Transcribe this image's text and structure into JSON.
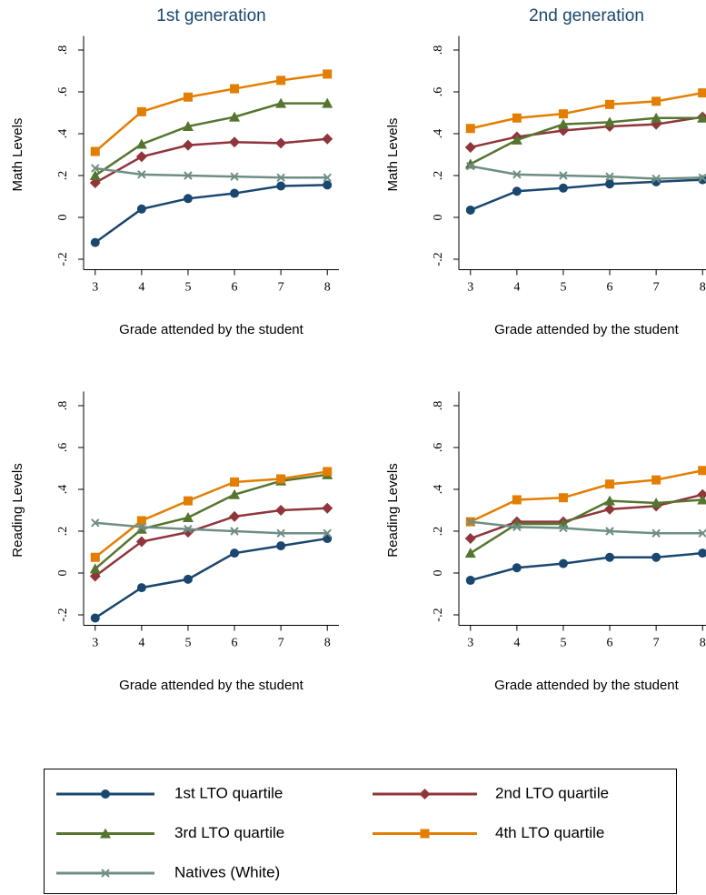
{
  "chart_data": [
    {
      "type": "line",
      "title": "1st generation",
      "ylabel": "Math Levels",
      "xlabel": "Grade attended by the student",
      "x": [
        3,
        4,
        5,
        6,
        7,
        8
      ],
      "xlim": [
        2.75,
        8.25
      ],
      "xticks": [
        3,
        4,
        5,
        6,
        7,
        8
      ],
      "ylim": [
        -0.25,
        0.85
      ],
      "yticks": [
        {
          "value": -0.2,
          "label": "-.2"
        },
        0,
        {
          "value": 0.2,
          "label": ".2"
        },
        {
          "value": 0.4,
          "label": ".4"
        },
        {
          "value": 0.6,
          "label": ".6"
        },
        {
          "value": 0.8,
          "label": ".8"
        }
      ],
      "series": [
        {
          "values": [
            -0.12,
            0.04,
            0.09,
            0.115,
            0.15,
            0.155
          ]
        },
        {
          "values": [
            0.165,
            0.29,
            0.345,
            0.36,
            0.355,
            0.375
          ]
        },
        {
          "values": [
            0.2,
            0.35,
            0.435,
            0.48,
            0.545,
            0.545
          ]
        },
        {
          "values": [
            0.315,
            0.505,
            0.575,
            0.615,
            0.655,
            0.685
          ]
        },
        {
          "values": [
            0.235,
            0.205,
            0.2,
            0.195,
            0.19,
            0.19
          ]
        }
      ]
    },
    {
      "type": "line",
      "title": "2nd generation",
      "ylabel": "Math Levels",
      "xlabel": "Grade attended by the student",
      "x": [
        3,
        4,
        5,
        6,
        7,
        8
      ],
      "xlim": [
        2.75,
        8.25
      ],
      "xticks": [
        3,
        4,
        5,
        6,
        7,
        8
      ],
      "ylim": [
        -0.25,
        0.85
      ],
      "yticks": [
        {
          "value": -0.2,
          "label": "-.2"
        },
        0,
        {
          "value": 0.2,
          "label": ".2"
        },
        {
          "value": 0.4,
          "label": ".4"
        },
        {
          "value": 0.6,
          "label": ".6"
        },
        {
          "value": 0.8,
          "label": ".8"
        }
      ],
      "series": [
        {
          "values": [
            0.035,
            0.125,
            0.14,
            0.16,
            0.17,
            0.18
          ]
        },
        {
          "values": [
            0.335,
            0.385,
            0.415,
            0.435,
            0.445,
            0.48
          ]
        },
        {
          "values": [
            0.255,
            0.37,
            0.445,
            0.455,
            0.475,
            0.475
          ]
        },
        {
          "values": [
            0.425,
            0.475,
            0.495,
            0.54,
            0.555,
            0.595
          ]
        },
        {
          "values": [
            0.245,
            0.205,
            0.2,
            0.195,
            0.185,
            0.19
          ]
        }
      ]
    },
    {
      "type": "line",
      "ylabel": "Reading Levels",
      "xlabel": "Grade attended by the student",
      "x": [
        3,
        4,
        5,
        6,
        7,
        8
      ],
      "xlim": [
        2.75,
        8.25
      ],
      "xticks": [
        3,
        4,
        5,
        6,
        7,
        8
      ],
      "ylim": [
        -0.25,
        0.85
      ],
      "yticks": [
        {
          "value": -0.2,
          "label": "-.2"
        },
        0,
        {
          "value": 0.2,
          "label": ".2"
        },
        {
          "value": 0.4,
          "label": ".4"
        },
        {
          "value": 0.6,
          "label": ".6"
        },
        {
          "value": 0.8,
          "label": ".8"
        }
      ],
      "series": [
        {
          "values": [
            -0.215,
            -0.07,
            -0.03,
            0.095,
            0.13,
            0.165
          ]
        },
        {
          "values": [
            -0.015,
            0.15,
            0.195,
            0.27,
            0.3,
            0.31
          ]
        },
        {
          "values": [
            0.02,
            0.21,
            0.265,
            0.375,
            0.44,
            0.47
          ]
        },
        {
          "values": [
            0.075,
            0.25,
            0.345,
            0.435,
            0.45,
            0.485
          ]
        },
        {
          "values": [
            0.24,
            0.22,
            0.21,
            0.2,
            0.19,
            0.19
          ]
        }
      ]
    },
    {
      "type": "line",
      "ylabel": "Reading Levels",
      "xlabel": "Grade attended by the student",
      "x": [
        3,
        4,
        5,
        6,
        7,
        8
      ],
      "xlim": [
        2.75,
        8.25
      ],
      "xticks": [
        3,
        4,
        5,
        6,
        7,
        8
      ],
      "ylim": [
        -0.25,
        0.85
      ],
      "yticks": [
        {
          "value": -0.2,
          "label": "-.2"
        },
        0,
        {
          "value": 0.2,
          "label": ".2"
        },
        {
          "value": 0.4,
          "label": ".4"
        },
        {
          "value": 0.6,
          "label": ".6"
        },
        {
          "value": 0.8,
          "label": ".8"
        }
      ],
      "series": [
        {
          "values": [
            -0.035,
            0.025,
            0.045,
            0.075,
            0.075,
            0.095
          ]
        },
        {
          "values": [
            0.165,
            0.245,
            0.245,
            0.305,
            0.32,
            0.375
          ]
        },
        {
          "values": [
            0.095,
            0.235,
            0.235,
            0.345,
            0.335,
            0.35
          ]
        },
        {
          "values": [
            0.245,
            0.35,
            0.36,
            0.425,
            0.445,
            0.49
          ]
        },
        {
          "values": [
            0.245,
            0.22,
            0.215,
            0.2,
            0.19,
            0.19
          ]
        }
      ]
    }
  ],
  "legend": {
    "series": [
      {
        "name": "1st LTO quartile",
        "color": "#1a476f",
        "marker": "circle"
      },
      {
        "name": "2nd LTO quartile",
        "color": "#90353b",
        "marker": "diamond"
      },
      {
        "name": "3rd LTO quartile",
        "color": "#55752f",
        "marker": "triangle"
      },
      {
        "name": "4th LTO quartile",
        "color": "#e37e00",
        "marker": "square"
      },
      {
        "name": "Natives (White)",
        "color": "#6e8e84",
        "marker": "x"
      }
    ]
  }
}
